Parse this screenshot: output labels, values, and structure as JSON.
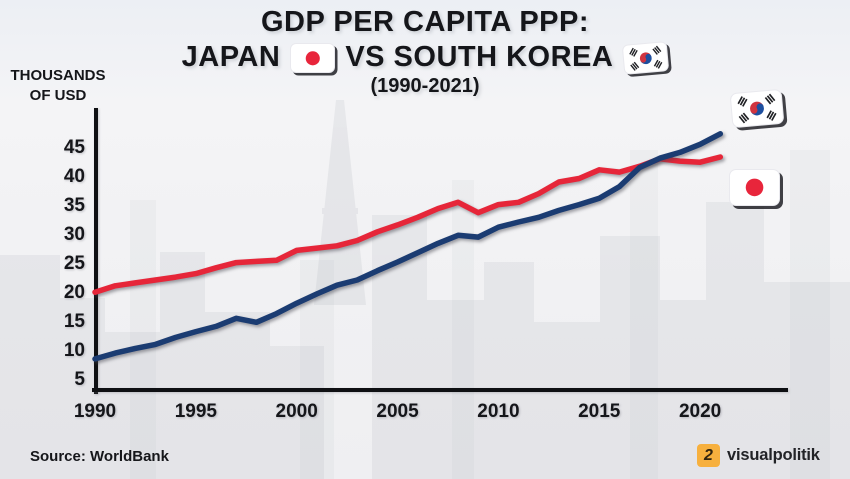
{
  "title": {
    "line1": "GDP PER CAPITA PPP:",
    "line2_left": "JAPAN",
    "line2_right": "VS SOUTH KOREA",
    "line3": "(1990-2021)"
  },
  "y_axis_unit": {
    "line1": "THOUSANDS",
    "line2": "OF USD"
  },
  "source": "Source: WorldBank",
  "logo": {
    "mark": "2",
    "text": "visualpolitik",
    "mark_color": "#f7b03e"
  },
  "colors": {
    "japan_line": "#e62639",
    "korea_line": "#1b3c72",
    "axis": "#0f1013",
    "background": "#f1f1f3",
    "japan_flag_red": "#e8253b",
    "korea_taegeuk_red": "#d13440",
    "korea_taegeuk_blue": "#1e4f9f"
  },
  "chart_data": {
    "type": "line",
    "title": "GDP PER CAPITA PPP: JAPAN VS SOUTH KOREA (1990-2021)",
    "ylabel": "THOUSANDS OF USD",
    "xlabel": "",
    "grid": false,
    "legend_position": "right-flags",
    "ylim": [
      5,
      51
    ],
    "xlim": [
      1990,
      2021
    ],
    "yticks": [
      5,
      10,
      15,
      20,
      25,
      30,
      35,
      40,
      45
    ],
    "xticks": [
      1990,
      1995,
      2000,
      2005,
      2010,
      2015,
      2020
    ],
    "x": [
      1990,
      1991,
      1992,
      1993,
      1994,
      1995,
      1996,
      1997,
      1998,
      1999,
      2000,
      2001,
      2002,
      2003,
      2004,
      2005,
      2006,
      2007,
      2008,
      2009,
      2010,
      2011,
      2012,
      2013,
      2014,
      2015,
      2016,
      2017,
      2018,
      2019,
      2020,
      2021
    ],
    "series": [
      {
        "name": "Japan",
        "color": "#e62639",
        "values": [
          19.8,
          20.9,
          21.4,
          21.9,
          22.4,
          23.0,
          24.0,
          24.9,
          25.1,
          25.3,
          27.0,
          27.4,
          27.8,
          28.7,
          30.2,
          31.4,
          32.7,
          34.2,
          35.3,
          33.5,
          34.9,
          35.3,
          36.8,
          38.8,
          39.4,
          40.9,
          40.5,
          41.5,
          42.8,
          42.4,
          42.2,
          43.1
        ]
      },
      {
        "name": "South Korea",
        "color": "#1b3c72",
        "values": [
          8.3,
          9.3,
          10.1,
          10.8,
          12.0,
          13.0,
          13.9,
          15.3,
          14.6,
          16.1,
          17.9,
          19.5,
          21.0,
          21.9,
          23.5,
          25.0,
          26.6,
          28.2,
          29.6,
          29.3,
          31.0,
          31.9,
          32.7,
          33.9,
          34.9,
          36.0,
          38.0,
          41.3,
          42.9,
          43.9,
          45.3,
          47.1
        ]
      }
    ]
  }
}
